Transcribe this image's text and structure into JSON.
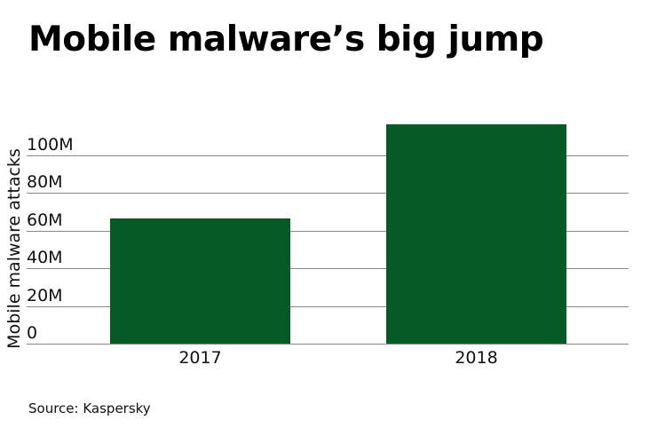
{
  "chart_data": {
    "type": "bar",
    "title": "Mobile malware’s big jump",
    "xlabel": "",
    "ylabel": "Mobile malware attacks",
    "categories": [
      "2017",
      "2018"
    ],
    "values": [
      66400000,
      116500000
    ],
    "ylim": [
      0,
      120000000
    ],
    "yticks": [
      0,
      20000000,
      40000000,
      60000000,
      80000000,
      100000000
    ],
    "ytick_labels": [
      "0",
      "20M",
      "40M",
      "60M",
      "80M",
      "100M"
    ],
    "grid": true,
    "legend": null,
    "bar_color": "#055a26",
    "source": "Source: Kaspersky"
  }
}
